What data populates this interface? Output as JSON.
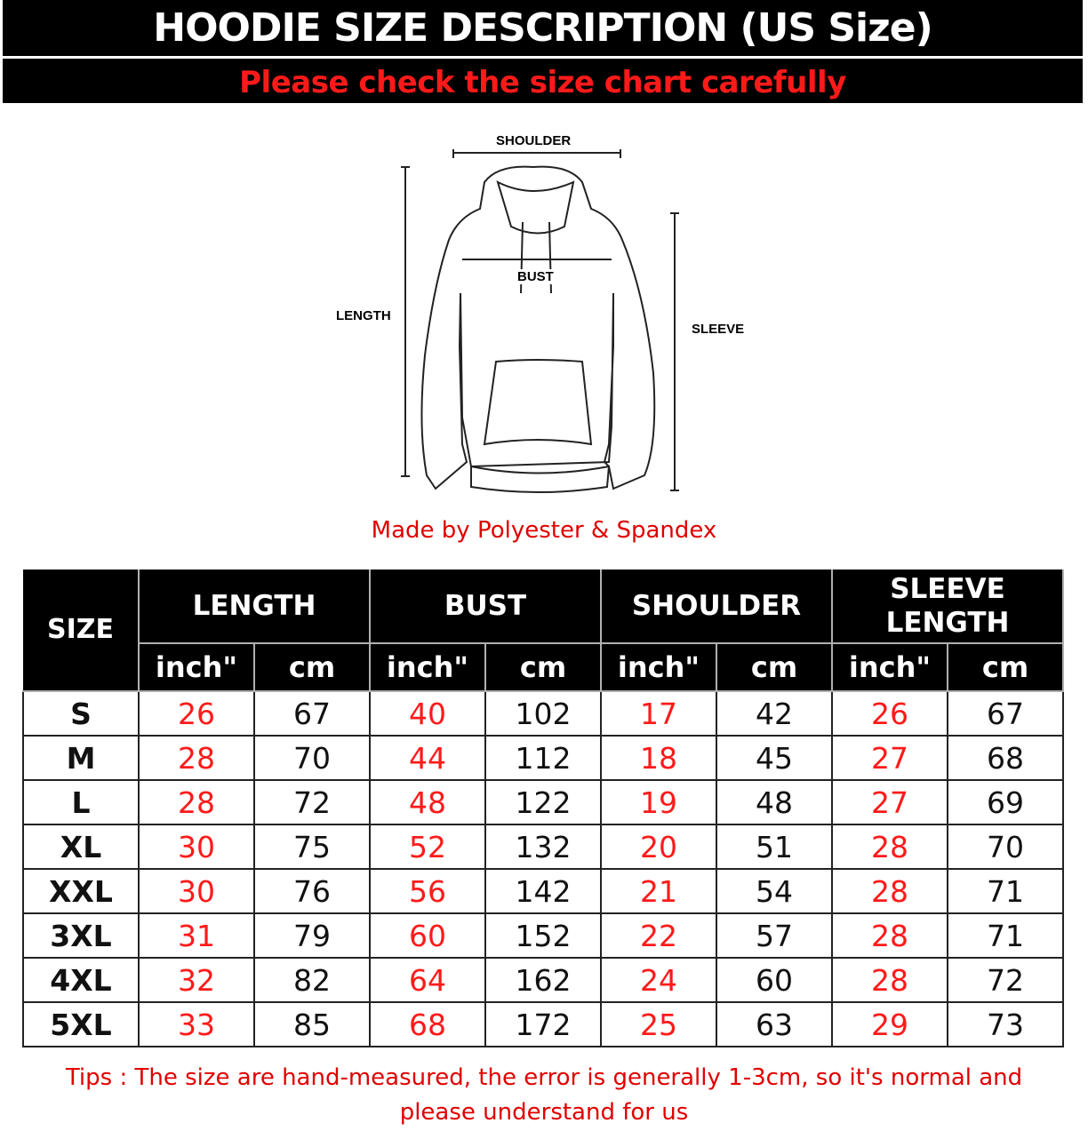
{
  "header": {
    "title": "HOODIE SIZE DESCRIPTION (US Size)",
    "subtitle": "Please check the size chart carefully"
  },
  "diagram": {
    "shoulder": "SHOULDER",
    "bust": "BUST",
    "length": "LENGTH",
    "sleeve": "SLEEVE"
  },
  "material": "Made by Polyester & Spandex",
  "table": {
    "size_header": "SIZE",
    "groups": [
      "LENGTH",
      "BUST",
      "SHOULDER",
      "SLEEVE LENGTH"
    ],
    "units": [
      "inch\"",
      "cm"
    ],
    "rows": [
      [
        "S",
        "26",
        "67",
        "40",
        "102",
        "17",
        "42",
        "26",
        "67"
      ],
      [
        "M",
        "28",
        "70",
        "44",
        "112",
        "18",
        "45",
        "27",
        "68"
      ],
      [
        "L",
        "28",
        "72",
        "48",
        "122",
        "19",
        "48",
        "27",
        "69"
      ],
      [
        "XL",
        "30",
        "75",
        "52",
        "132",
        "20",
        "51",
        "28",
        "70"
      ],
      [
        "XXL",
        "30",
        "76",
        "56",
        "142",
        "21",
        "54",
        "28",
        "71"
      ],
      [
        "3XL",
        "31",
        "79",
        "60",
        "152",
        "22",
        "57",
        "28",
        "71"
      ],
      [
        "4XL",
        "32",
        "82",
        "64",
        "162",
        "24",
        "60",
        "28",
        "72"
      ],
      [
        "5XL",
        "33",
        "85",
        "68",
        "172",
        "25",
        "63",
        "29",
        "73"
      ]
    ]
  },
  "tips": "Tips : The size are hand-measured, the error is generally 1-3cm, so it's normal and please understand for us",
  "colors": {
    "header_bg": "#000000",
    "accent_red": "#ff1a1a"
  }
}
